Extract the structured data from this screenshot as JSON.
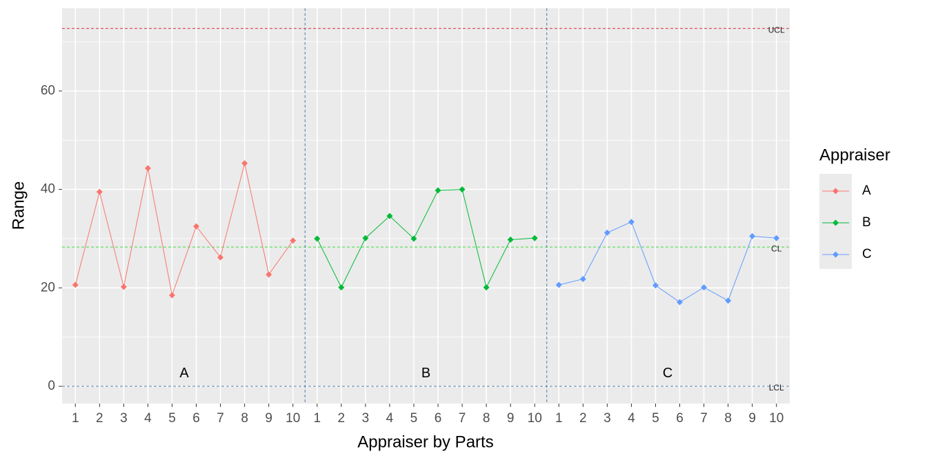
{
  "chart_data": {
    "type": "line",
    "xlabel": "Appraiser by Parts",
    "ylabel": "Range",
    "legend_title": "Appraiser",
    "legend": "right",
    "grid": true,
    "categories": [
      "1",
      "2",
      "3",
      "4",
      "5",
      "6",
      "7",
      "8",
      "9",
      "10",
      "1",
      "2",
      "3",
      "4",
      "5",
      "6",
      "7",
      "8",
      "9",
      "10",
      "1",
      "2",
      "3",
      "4",
      "5",
      "6",
      "7",
      "8",
      "9",
      "10"
    ],
    "ylim": [
      -3.5,
      76.8
    ],
    "yticks": [
      0,
      20,
      40,
      60
    ],
    "minor_yticks": [
      10,
      30,
      50,
      70
    ],
    "series": [
      {
        "name": "A",
        "color": "#F8766D",
        "values": [
          20.6,
          39.5,
          20.2,
          44.3,
          18.5,
          32.5,
          26.2,
          45.3,
          22.7,
          29.6,
          null,
          null,
          null,
          null,
          null,
          null,
          null,
          null,
          null,
          null,
          null,
          null,
          null,
          null,
          null,
          null,
          null,
          null,
          null,
          null
        ]
      },
      {
        "name": "B",
        "color": "#00BA38",
        "values": [
          null,
          null,
          null,
          null,
          null,
          null,
          null,
          null,
          null,
          null,
          30.0,
          20.1,
          30.1,
          34.6,
          30.0,
          39.8,
          40.0,
          20.1,
          29.8,
          30.1,
          null,
          null,
          null,
          null,
          null,
          null,
          null,
          null,
          null,
          null
        ]
      },
      {
        "name": "C",
        "color": "#619CFF",
        "values": [
          null,
          null,
          null,
          null,
          null,
          null,
          null,
          null,
          null,
          null,
          null,
          null,
          null,
          null,
          null,
          null,
          null,
          null,
          null,
          null,
          20.6,
          21.8,
          31.2,
          33.4,
          20.5,
          17.1,
          20.1,
          17.4,
          30.5,
          30.1
        ]
      }
    ],
    "reference_lines": [
      {
        "label": "UCL",
        "value": 72.7,
        "color": "#E0282E"
      },
      {
        "label": "CL",
        "value": 28.3,
        "color": "#3DDC3D"
      },
      {
        "label": "LCL",
        "value": 0,
        "color": "#4F79A8"
      }
    ],
    "group_dividers": [
      10.5,
      20.5
    ],
    "divider_color": "#4F79A8",
    "annotations": [
      {
        "text": "A",
        "x": 5.5,
        "y": 2.6
      },
      {
        "text": "B",
        "x": 15.5,
        "y": 2.6
      },
      {
        "text": "C",
        "x": 25.5,
        "y": 2.6
      }
    ]
  }
}
